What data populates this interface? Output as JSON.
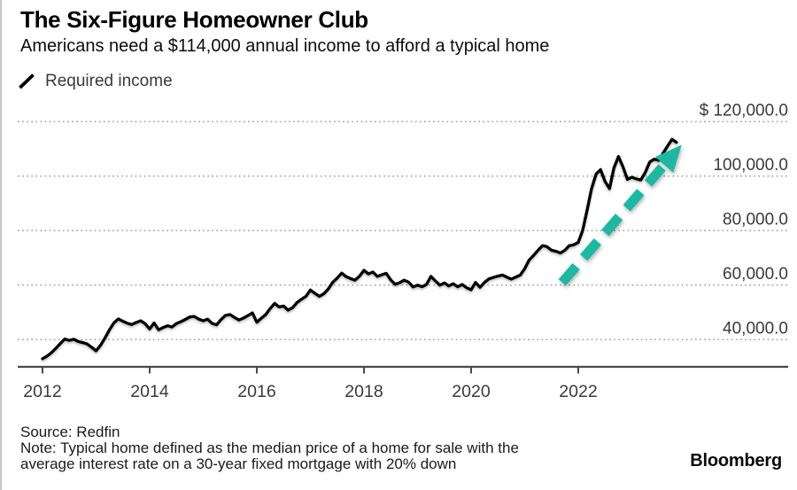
{
  "header": {
    "title": "The Six-Figure Homeowner Club",
    "subtitle": "Americans need a $114,000 annual income to afford a typical home"
  },
  "legend": {
    "label": "Required income",
    "marker": "diagonal-line",
    "marker_color": "#000000"
  },
  "chart_data": {
    "type": "line",
    "title": "The Six-Figure Homeowner Club",
    "subtitle": "Americans need a $114,000 annual income to afford a typical home",
    "x_unit": "month",
    "x_start_year": 2012,
    "x_end_year": 2023.83,
    "ylim": [
      30000,
      123500
    ],
    "xlim": [
      2012,
      2024
    ],
    "grid": "horizontal-dotted",
    "grid_color": "#9f9f9f",
    "axis_color": "#4a4a4a",
    "tick_label_color": "#3a3a3a",
    "legend_position": "top-left",
    "x_ticks": {
      "values": [
        2012,
        2014,
        2016,
        2018,
        2020,
        2022
      ],
      "labels": [
        "2012",
        "2014",
        "2016",
        "2018",
        "2020",
        "2022"
      ]
    },
    "y_ticks": {
      "values": [
        120000,
        100000,
        80000,
        60000,
        40000
      ],
      "labels": [
        "$ 120,000.0",
        "100,000.0",
        "80,000.0",
        "60,000.0",
        "40,000.0"
      ]
    },
    "series": [
      {
        "name": "Required income",
        "color": "#000000",
        "monthly_values_usd": [
          33000,
          33900,
          35200,
          36800,
          38600,
          40200,
          39700,
          40100,
          39300,
          38900,
          38400,
          37200,
          35900,
          37900,
          40600,
          43600,
          46200,
          47600,
          46700,
          46000,
          45500,
          46300,
          46900,
          45800,
          43900,
          46100,
          43600,
          44400,
          45100,
          44600,
          45900,
          46600,
          47400,
          48300,
          48500,
          47500,
          46900,
          47500,
          45900,
          45400,
          47400,
          48900,
          49200,
          48100,
          47200,
          47900,
          48800,
          49800,
          46400,
          47800,
          49200,
          51400,
          53300,
          52000,
          52300,
          50800,
          51700,
          53600,
          54800,
          55900,
          58200,
          57000,
          55900,
          56800,
          58600,
          61000,
          62600,
          64400,
          63100,
          62400,
          61800,
          63300,
          65400,
          64100,
          64800,
          63200,
          63800,
          64300,
          61900,
          60300,
          60900,
          61800,
          61100,
          59300,
          60000,
          59400,
          60200,
          63200,
          61500,
          60000,
          60800,
          59700,
          60500,
          59400,
          60200,
          59000,
          58300,
          61000,
          59200,
          61000,
          62300,
          62800,
          63300,
          63700,
          62900,
          62200,
          62900,
          63700,
          66000,
          69200,
          70900,
          72800,
          74500,
          74100,
          72800,
          72400,
          71800,
          72800,
          74500,
          74800,
          75700,
          80100,
          87700,
          95500,
          100800,
          102400,
          98000,
          95400,
          103000,
          107200,
          103500,
          98800,
          99600,
          99000,
          98600,
          101300,
          105200,
          106200,
          105800,
          108400,
          111000,
          113500,
          112400
        ]
      }
    ],
    "annotation": {
      "type": "dashed-arrow",
      "color": "#1db8a2",
      "from": {
        "x": 2021.7,
        "y": 61000
      },
      "to": {
        "x": 2023.93,
        "y": 111500
      }
    }
  },
  "footer": {
    "source": "Source: Redfin",
    "note_line1": "Note: Typical home defined as the median price of a home for sale with the",
    "note_line2": "average interest rate on a 30-year fixed mortgage with 20% down",
    "brand": "Bloomberg"
  }
}
